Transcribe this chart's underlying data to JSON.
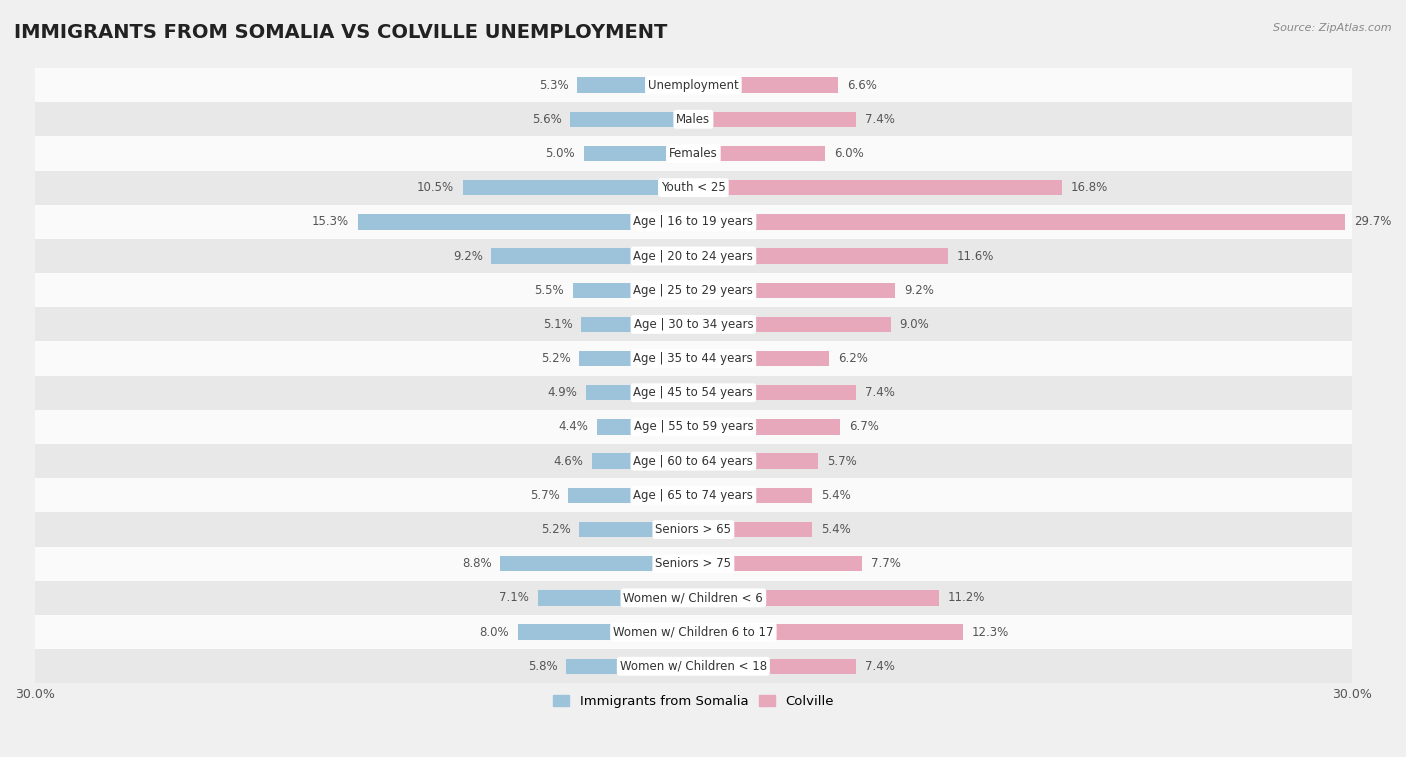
{
  "title": "IMMIGRANTS FROM SOMALIA VS COLVILLE UNEMPLOYMENT",
  "source": "Source: ZipAtlas.com",
  "categories": [
    "Unemployment",
    "Males",
    "Females",
    "Youth < 25",
    "Age | 16 to 19 years",
    "Age | 20 to 24 years",
    "Age | 25 to 29 years",
    "Age | 30 to 34 years",
    "Age | 35 to 44 years",
    "Age | 45 to 54 years",
    "Age | 55 to 59 years",
    "Age | 60 to 64 years",
    "Age | 65 to 74 years",
    "Seniors > 65",
    "Seniors > 75",
    "Women w/ Children < 6",
    "Women w/ Children 6 to 17",
    "Women w/ Children < 18"
  ],
  "somalia_values": [
    5.3,
    5.6,
    5.0,
    10.5,
    15.3,
    9.2,
    5.5,
    5.1,
    5.2,
    4.9,
    4.4,
    4.6,
    5.7,
    5.2,
    8.8,
    7.1,
    8.0,
    5.8
  ],
  "colville_values": [
    6.6,
    7.4,
    6.0,
    16.8,
    29.7,
    11.6,
    9.2,
    9.0,
    6.2,
    7.4,
    6.7,
    5.7,
    5.4,
    5.4,
    7.7,
    11.2,
    12.3,
    7.4
  ],
  "somalia_color": "#9dc3db",
  "colville_color": "#e8a8bc",
  "axis_max": 30.0,
  "background_color": "#f0f0f0",
  "row_colors": [
    "#fafafa",
    "#e8e8e8"
  ],
  "title_fontsize": 14,
  "label_fontsize": 8.5,
  "value_fontsize": 8.5,
  "legend_somalia": "Immigrants from Somalia",
  "legend_colville": "Colville"
}
